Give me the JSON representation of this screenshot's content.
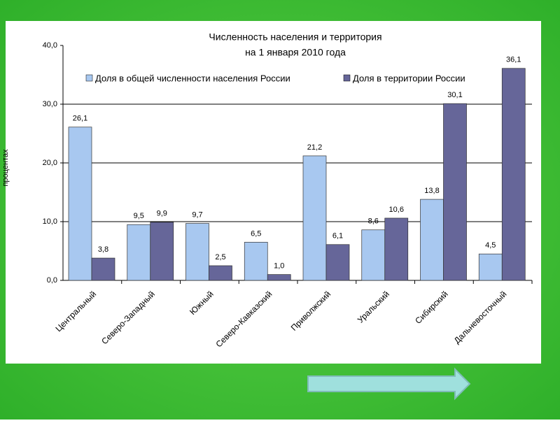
{
  "chart_data": {
    "type": "bar",
    "title": [
      "Численность населения и территория",
      "на 1 января 2010 года"
    ],
    "ylabel": "процентах",
    "categories": [
      "Центральный",
      "Северо-Западный",
      "Южный",
      "Северо-Кавказский",
      "Приволжский",
      "Уральский",
      "Сибирский",
      "Дальневосточный"
    ],
    "series": [
      {
        "name": "Доля в общей численности населения России",
        "color": "#a8c8f0",
        "values": [
          26.1,
          9.5,
          9.7,
          6.5,
          21.2,
          8.6,
          13.8,
          4.5
        ],
        "value_labels": [
          "26,1",
          "9,5",
          "9,7",
          "6,5",
          "21,2",
          "8,6",
          "13,8",
          "4,5"
        ]
      },
      {
        "name": "Доля в территории России",
        "color": "#666699",
        "values": [
          3.8,
          9.9,
          2.5,
          1.0,
          6.1,
          10.6,
          30.1,
          36.1
        ],
        "value_labels": [
          "3,8",
          "9,9",
          "2,5",
          "1,0",
          "6,1",
          "10,6",
          "30,1",
          "36,1"
        ]
      }
    ],
    "ylim": [
      0,
      40
    ],
    "yticks": [
      {
        "value": 0,
        "label": "0,0"
      },
      {
        "value": 10,
        "label": "10,0"
      },
      {
        "value": 20,
        "label": "20,0"
      },
      {
        "value": 30,
        "label": "30,0"
      },
      {
        "value": 40,
        "label": "40,0"
      }
    ],
    "grid": true
  }
}
